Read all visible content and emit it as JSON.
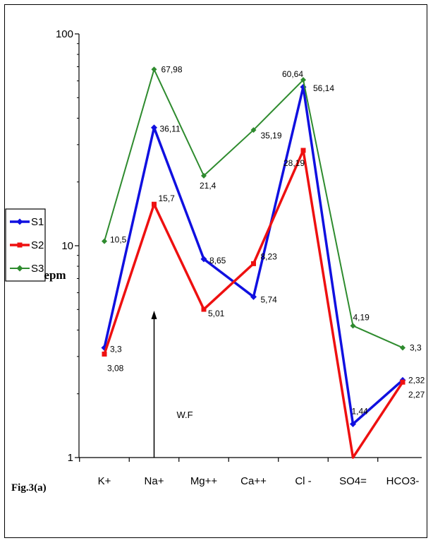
{
  "figure_label": "Fig.3(a)",
  "chart_data": {
    "type": "line",
    "ylabel": "epm",
    "yscale": "log",
    "ylim": [
      1,
      100
    ],
    "yticks": [
      "1",
      "10",
      "100"
    ],
    "categories": [
      "K+",
      "Na+",
      "Mg++",
      "Ca++",
      "Cl -",
      "SO4=",
      "HCO3-"
    ],
    "legend_position": "left",
    "series": [
      {
        "name": "S1",
        "color": "#1010e0",
        "marker": "diamond",
        "values": [
          3.3,
          36.11,
          8.65,
          5.74,
          56.14,
          1.44,
          2.32
        ],
        "labels": [
          "3,3",
          "36,11",
          "8,65",
          "5,74",
          "56,14",
          "1,44",
          "2,32"
        ]
      },
      {
        "name": "S2",
        "color": "#ee1010",
        "marker": "square",
        "values": [
          3.08,
          15.7,
          5.01,
          8.23,
          28.19,
          0.98,
          2.27
        ],
        "labels": [
          "3,08",
          "15,7",
          "5,01",
          "8,23",
          "28,19",
          "",
          "2,27"
        ]
      },
      {
        "name": "S3",
        "color": "#2e8b2e",
        "marker": "diamond",
        "values": [
          10.5,
          67.98,
          21.4,
          35.19,
          60.64,
          4.19,
          3.3
        ],
        "labels": [
          "10,5",
          "67,98",
          "21,4",
          "35,19",
          "60,64",
          "4,19",
          "3,3"
        ]
      }
    ],
    "annotation": {
      "text": "W.F",
      "category": "Na+"
    }
  }
}
